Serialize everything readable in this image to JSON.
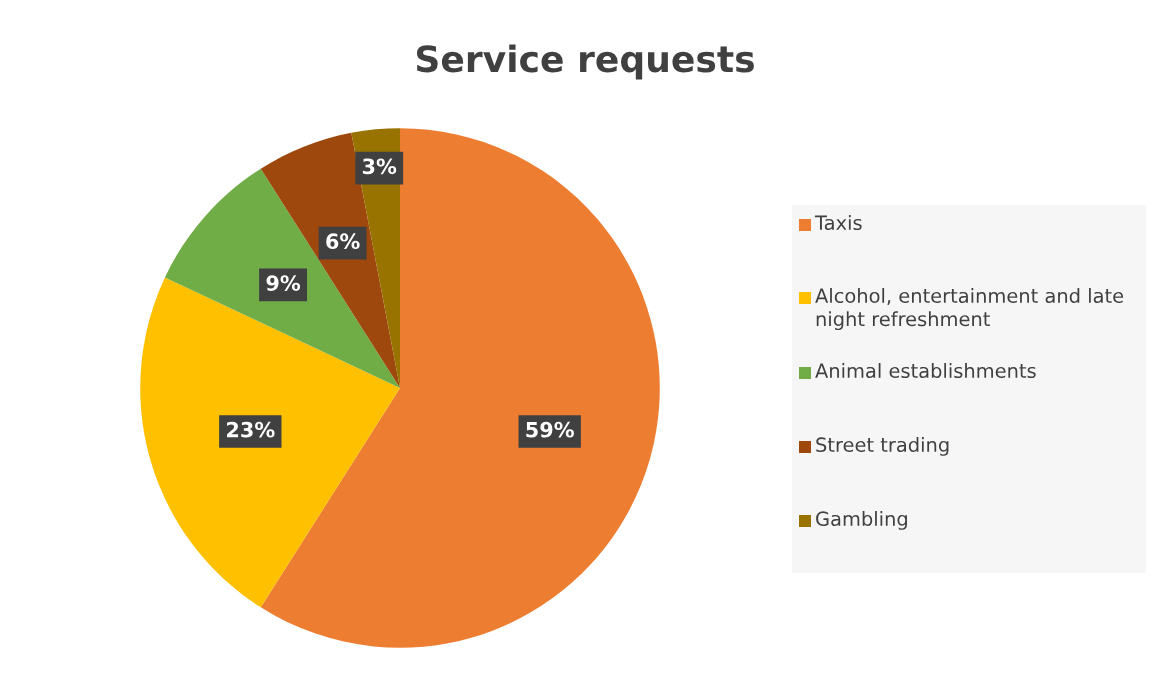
{
  "chart_data": {
    "type": "pie",
    "title": "Service requests",
    "categories": [
      "Taxis",
      "Alcohol, entertainment and late night refreshment",
      "Animal establishments",
      "Street trading",
      "Gambling"
    ],
    "values": [
      59,
      23,
      9,
      6,
      3
    ],
    "colors": [
      "#ed7d31",
      "#ffc000",
      "#70ad47",
      "#9e480e",
      "#997300"
    ],
    "value_labels": [
      "59%",
      "23%",
      "9%",
      "6%",
      "3%"
    ],
    "legend": "right"
  }
}
